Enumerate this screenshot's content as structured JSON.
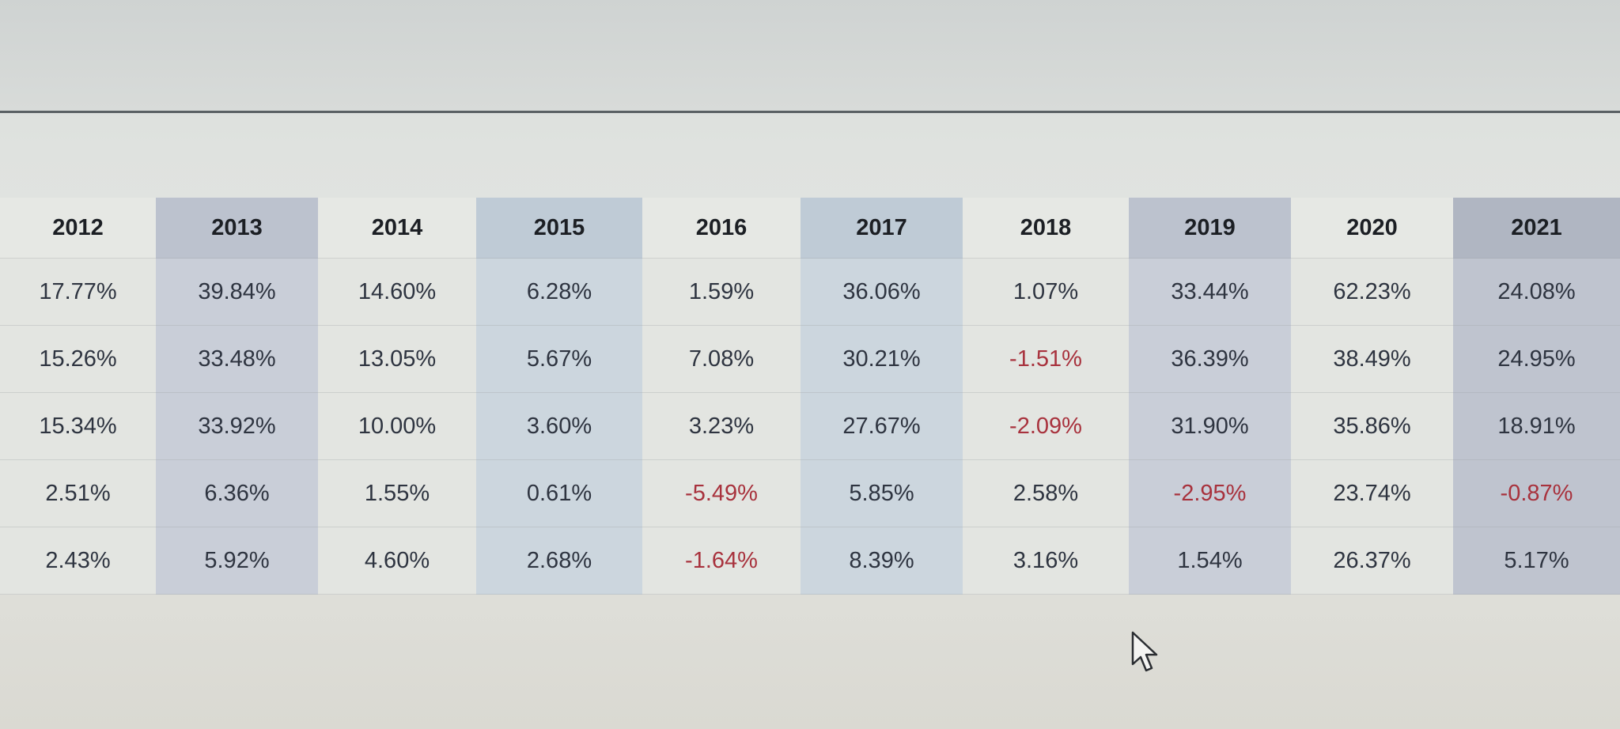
{
  "table": {
    "headers": [
      "2012",
      "2013",
      "2014",
      "2015",
      "2016",
      "2017",
      "2018",
      "2019",
      "2020",
      "2021"
    ],
    "rows": [
      [
        "17.77%",
        "39.84%",
        "14.60%",
        "6.28%",
        "1.59%",
        "36.06%",
        "1.07%",
        "33.44%",
        "62.23%",
        "24.08%"
      ],
      [
        "15.26%",
        "33.48%",
        "13.05%",
        "5.67%",
        "7.08%",
        "30.21%",
        "-1.51%",
        "36.39%",
        "38.49%",
        "24.95%"
      ],
      [
        "15.34%",
        "33.92%",
        "10.00%",
        "3.60%",
        "3.23%",
        "27.67%",
        "-2.09%",
        "31.90%",
        "35.86%",
        "18.91%"
      ],
      [
        "2.51%",
        "6.36%",
        "1.55%",
        "0.61%",
        "-5.49%",
        "5.85%",
        "2.58%",
        "-2.95%",
        "23.74%",
        "-0.87%"
      ],
      [
        "2.43%",
        "5.92%",
        "4.60%",
        "2.68%",
        "-1.64%",
        "8.39%",
        "3.16%",
        "1.54%",
        "26.37%",
        "5.17%"
      ]
    ]
  },
  "colors": {
    "negative": "#a8323d",
    "text": "#2e3440",
    "header_text": "#1c1f24"
  },
  "icons": {
    "cursor": "mouse-pointer-icon"
  }
}
